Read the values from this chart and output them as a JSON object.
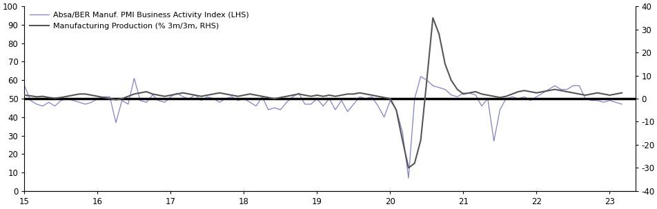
{
  "legend": [
    "Absa/BER Manuf. PMI Business Activity Index (LHS)",
    "Manufacturing Production (% 3m/3m, RHS)"
  ],
  "pmi_color": "#8080cc",
  "prod_color": "#555555",
  "hline_color": "#000000",
  "xlim": [
    15,
    23.35
  ],
  "ylim_left": [
    0,
    100
  ],
  "ylim_right": [
    -40,
    40
  ],
  "xticks": [
    15,
    16,
    17,
    18,
    19,
    20,
    21,
    22,
    23
  ],
  "yticks_left": [
    0,
    10,
    20,
    30,
    40,
    50,
    60,
    70,
    80,
    90,
    100
  ],
  "yticks_right": [
    -40,
    -30,
    -20,
    -10,
    0,
    10,
    20,
    30,
    40
  ],
  "bg_color": "#f0f0f0",
  "pmi_x": [
    15.0,
    15.083,
    15.167,
    15.25,
    15.333,
    15.417,
    15.5,
    15.583,
    15.667,
    15.75,
    15.833,
    15.917,
    16.0,
    16.083,
    16.167,
    16.25,
    16.333,
    16.417,
    16.5,
    16.583,
    16.667,
    16.75,
    16.833,
    16.917,
    17.0,
    17.083,
    17.167,
    17.25,
    17.333,
    17.417,
    17.5,
    17.583,
    17.667,
    17.75,
    17.833,
    17.917,
    18.0,
    18.083,
    18.167,
    18.25,
    18.333,
    18.417,
    18.5,
    18.583,
    18.667,
    18.75,
    18.833,
    18.917,
    19.0,
    19.083,
    19.167,
    19.25,
    19.333,
    19.417,
    19.5,
    19.583,
    19.667,
    19.75,
    19.833,
    19.917,
    20.0,
    20.083,
    20.167,
    20.25,
    20.333,
    20.417,
    20.5,
    20.583,
    20.667,
    20.75,
    20.833,
    20.917,
    21.0,
    21.083,
    21.167,
    21.25,
    21.333,
    21.417,
    21.5,
    21.583,
    21.667,
    21.75,
    21.833,
    21.917,
    22.0,
    22.083,
    22.167,
    22.25,
    22.333,
    22.417,
    22.5,
    22.583,
    22.667,
    22.75,
    22.833,
    22.917,
    23.0,
    23.083,
    23.167
  ],
  "pmi_y": [
    57,
    49,
    47,
    46,
    48,
    46,
    49,
    50,
    49,
    48,
    47,
    48,
    50,
    51,
    51,
    37,
    49,
    47,
    61,
    49,
    48,
    52,
    49,
    48,
    51,
    53,
    51,
    50,
    52,
    49,
    51,
    50,
    48,
    50,
    51,
    49,
    50,
    48,
    46,
    51,
    44,
    45,
    44,
    48,
    51,
    53,
    47,
    47,
    50,
    46,
    50,
    44,
    49,
    43,
    47,
    51,
    50,
    51,
    46,
    40,
    49,
    44,
    32,
    7,
    50,
    62,
    60,
    57,
    56,
    55,
    52,
    51,
    53,
    53,
    52,
    46,
    50,
    27,
    44,
    50,
    51,
    50,
    51,
    49,
    51,
    53,
    55,
    57,
    55,
    55,
    57,
    57,
    50,
    49,
    49,
    48,
    49,
    48,
    47
  ],
  "prod_x": [
    15.0,
    15.083,
    15.167,
    15.25,
    15.333,
    15.417,
    15.5,
    15.583,
    15.667,
    15.75,
    15.833,
    15.917,
    16.0,
    16.083,
    16.167,
    16.25,
    16.333,
    16.417,
    16.5,
    16.583,
    16.667,
    16.75,
    16.833,
    16.917,
    17.0,
    17.083,
    17.167,
    17.25,
    17.333,
    17.417,
    17.5,
    17.583,
    17.667,
    17.75,
    17.833,
    17.917,
    18.0,
    18.083,
    18.167,
    18.25,
    18.333,
    18.417,
    18.5,
    18.583,
    18.667,
    18.75,
    18.833,
    18.917,
    19.0,
    19.083,
    19.167,
    19.25,
    19.333,
    19.417,
    19.5,
    19.583,
    19.667,
    19.75,
    19.833,
    19.917,
    20.0,
    20.083,
    20.167,
    20.25,
    20.333,
    20.417,
    20.5,
    20.583,
    20.667,
    20.75,
    20.833,
    20.917,
    21.0,
    21.083,
    21.167,
    21.25,
    21.333,
    21.417,
    21.5,
    21.583,
    21.667,
    21.75,
    21.833,
    21.917,
    22.0,
    22.083,
    22.167,
    22.25,
    22.333,
    22.417,
    22.5,
    22.583,
    22.667,
    22.75,
    22.833,
    22.917,
    23.0,
    23.083,
    23.167
  ],
  "prod_y": [
    1.5,
    1.2,
    0.8,
    1.0,
    0.5,
    0.2,
    0.5,
    1.0,
    1.5,
    2.0,
    2.0,
    1.5,
    1.0,
    0.5,
    0.0,
    -0.5,
    0.0,
    1.0,
    2.0,
    2.5,
    3.0,
    2.0,
    1.5,
    1.0,
    1.5,
    2.0,
    2.5,
    2.0,
    1.5,
    1.0,
    1.5,
    2.0,
    2.5,
    2.0,
    1.5,
    1.0,
    1.5,
    2.0,
    1.5,
    1.0,
    0.5,
    0.0,
    0.5,
    1.0,
    1.5,
    2.0,
    1.5,
    1.0,
    1.5,
    1.0,
    1.5,
    1.0,
    1.5,
    2.0,
    2.0,
    2.5,
    2.0,
    1.5,
    1.0,
    0.5,
    0.0,
    -5.0,
    -18.0,
    -30.0,
    -28.0,
    -18.0,
    8.0,
    35.0,
    28.0,
    15.0,
    8.0,
    4.0,
    2.0,
    2.5,
    3.0,
    2.0,
    1.5,
    1.0,
    0.5,
    1.0,
    2.0,
    3.0,
    3.5,
    3.0,
    2.5,
    3.0,
    3.5,
    4.0,
    3.5,
    3.0,
    2.5,
    2.0,
    1.5,
    2.0,
    2.5,
    2.0,
    1.5,
    2.0,
    2.5
  ]
}
